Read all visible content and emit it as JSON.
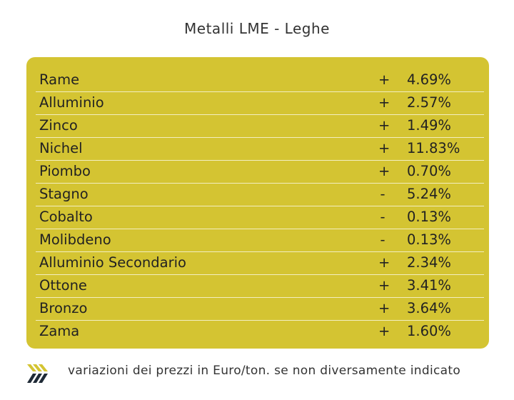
{
  "header": {
    "title": "Metalli LME - Leghe"
  },
  "table": {
    "rows": [
      [
        "Rame",
        "+",
        "4.69%"
      ],
      [
        "Alluminio",
        "+",
        "2.57%"
      ],
      [
        "Zinco",
        "+",
        "1.49%"
      ],
      [
        "Nichel",
        "+",
        "11.83%"
      ],
      [
        "Piombo",
        "+",
        "0.70%"
      ],
      [
        "Stagno",
        "-",
        "5.24%"
      ],
      [
        "Cobalto",
        "-",
        "0.13%"
      ],
      [
        "Molibdeno",
        "-",
        "0.13%"
      ],
      [
        "Alluminio Secondario",
        "+",
        "2.34%"
      ],
      [
        "Ottone",
        "+",
        "3.41%"
      ],
      [
        "Bronzo",
        "+",
        "3.64%"
      ],
      [
        "Zama",
        "+",
        "1.60%"
      ]
    ]
  },
  "footer": {
    "note": "variazioni dei prezzi in Euro/ton. se non diversamente indicato"
  }
}
